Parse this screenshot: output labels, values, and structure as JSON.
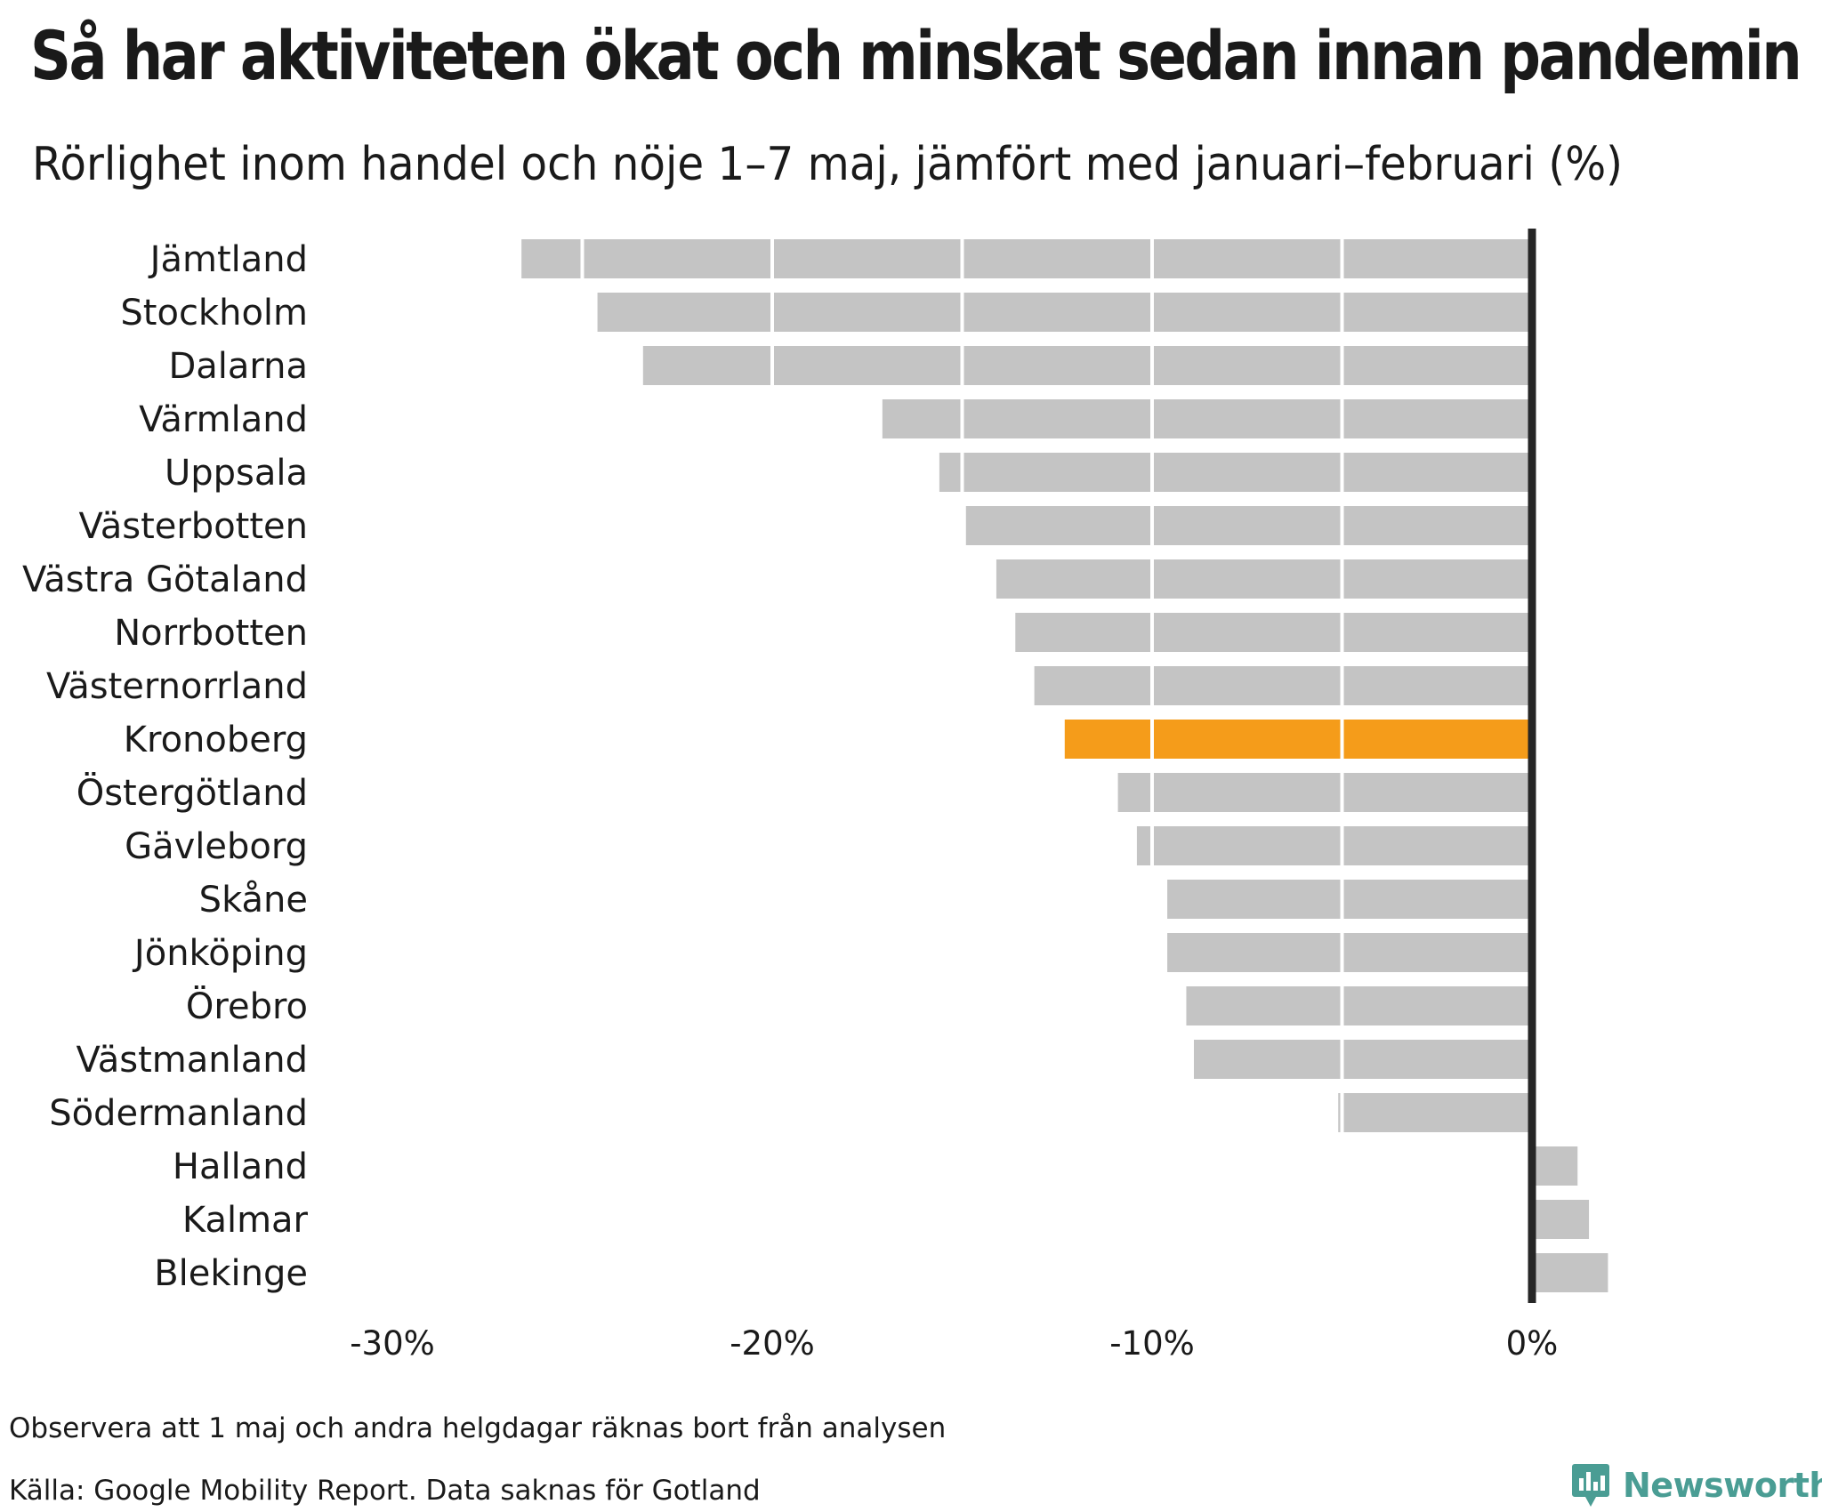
{
  "title": "Så har aktiviteten ökat och minskat sedan innan pandemin",
  "subtitle": "Rörlighet inom handel och nöje 1–7 maj, jämfört med januari–februari (%)",
  "chart_data": {
    "type": "bar",
    "orientation": "horizontal",
    "categories": [
      "Jämtland",
      "Stockholm",
      "Dalarna",
      "Värmland",
      "Uppsala",
      "Västerbotten",
      "Västra Götaland",
      "Norrbotten",
      "Västernorrland",
      "Kronoberg",
      "Östergötland",
      "Gävleborg",
      "Skåne",
      "Jönköping",
      "Örebro",
      "Västmanland",
      "Södermanland",
      "Halland",
      "Kalmar",
      "Blekinge"
    ],
    "values": [
      -26.6,
      -24.6,
      -23.4,
      -17.1,
      -15.6,
      -14.9,
      -14.1,
      -13.6,
      -13.1,
      -12.3,
      -10.9,
      -10.4,
      -9.6,
      -9.6,
      -9.1,
      -8.9,
      -5.1,
      1.2,
      1.5,
      2.0
    ],
    "highlight": "Kronoberg",
    "xlim": [
      -30,
      2
    ],
    "xticks": [
      -30,
      -20,
      -10,
      0
    ],
    "xtick_labels": [
      "-30%",
      "-20%",
      "-10%",
      "0%"
    ],
    "grid": true,
    "colors": {
      "bar": "#c4c4c4",
      "highlight": "#f59c1a",
      "zero_line": "#262626",
      "grid": "#ffffff"
    }
  },
  "notes": {
    "holiday_note": "Observera att 1 maj och andra helgdagar räknas bort från analysen",
    "source": "Källa: Google Mobility Report. Data saknas för Gotland"
  },
  "brand": {
    "name": "Newsworthy",
    "logo_icon": "newsworthy-logo-icon",
    "color": "#4a9d94"
  }
}
